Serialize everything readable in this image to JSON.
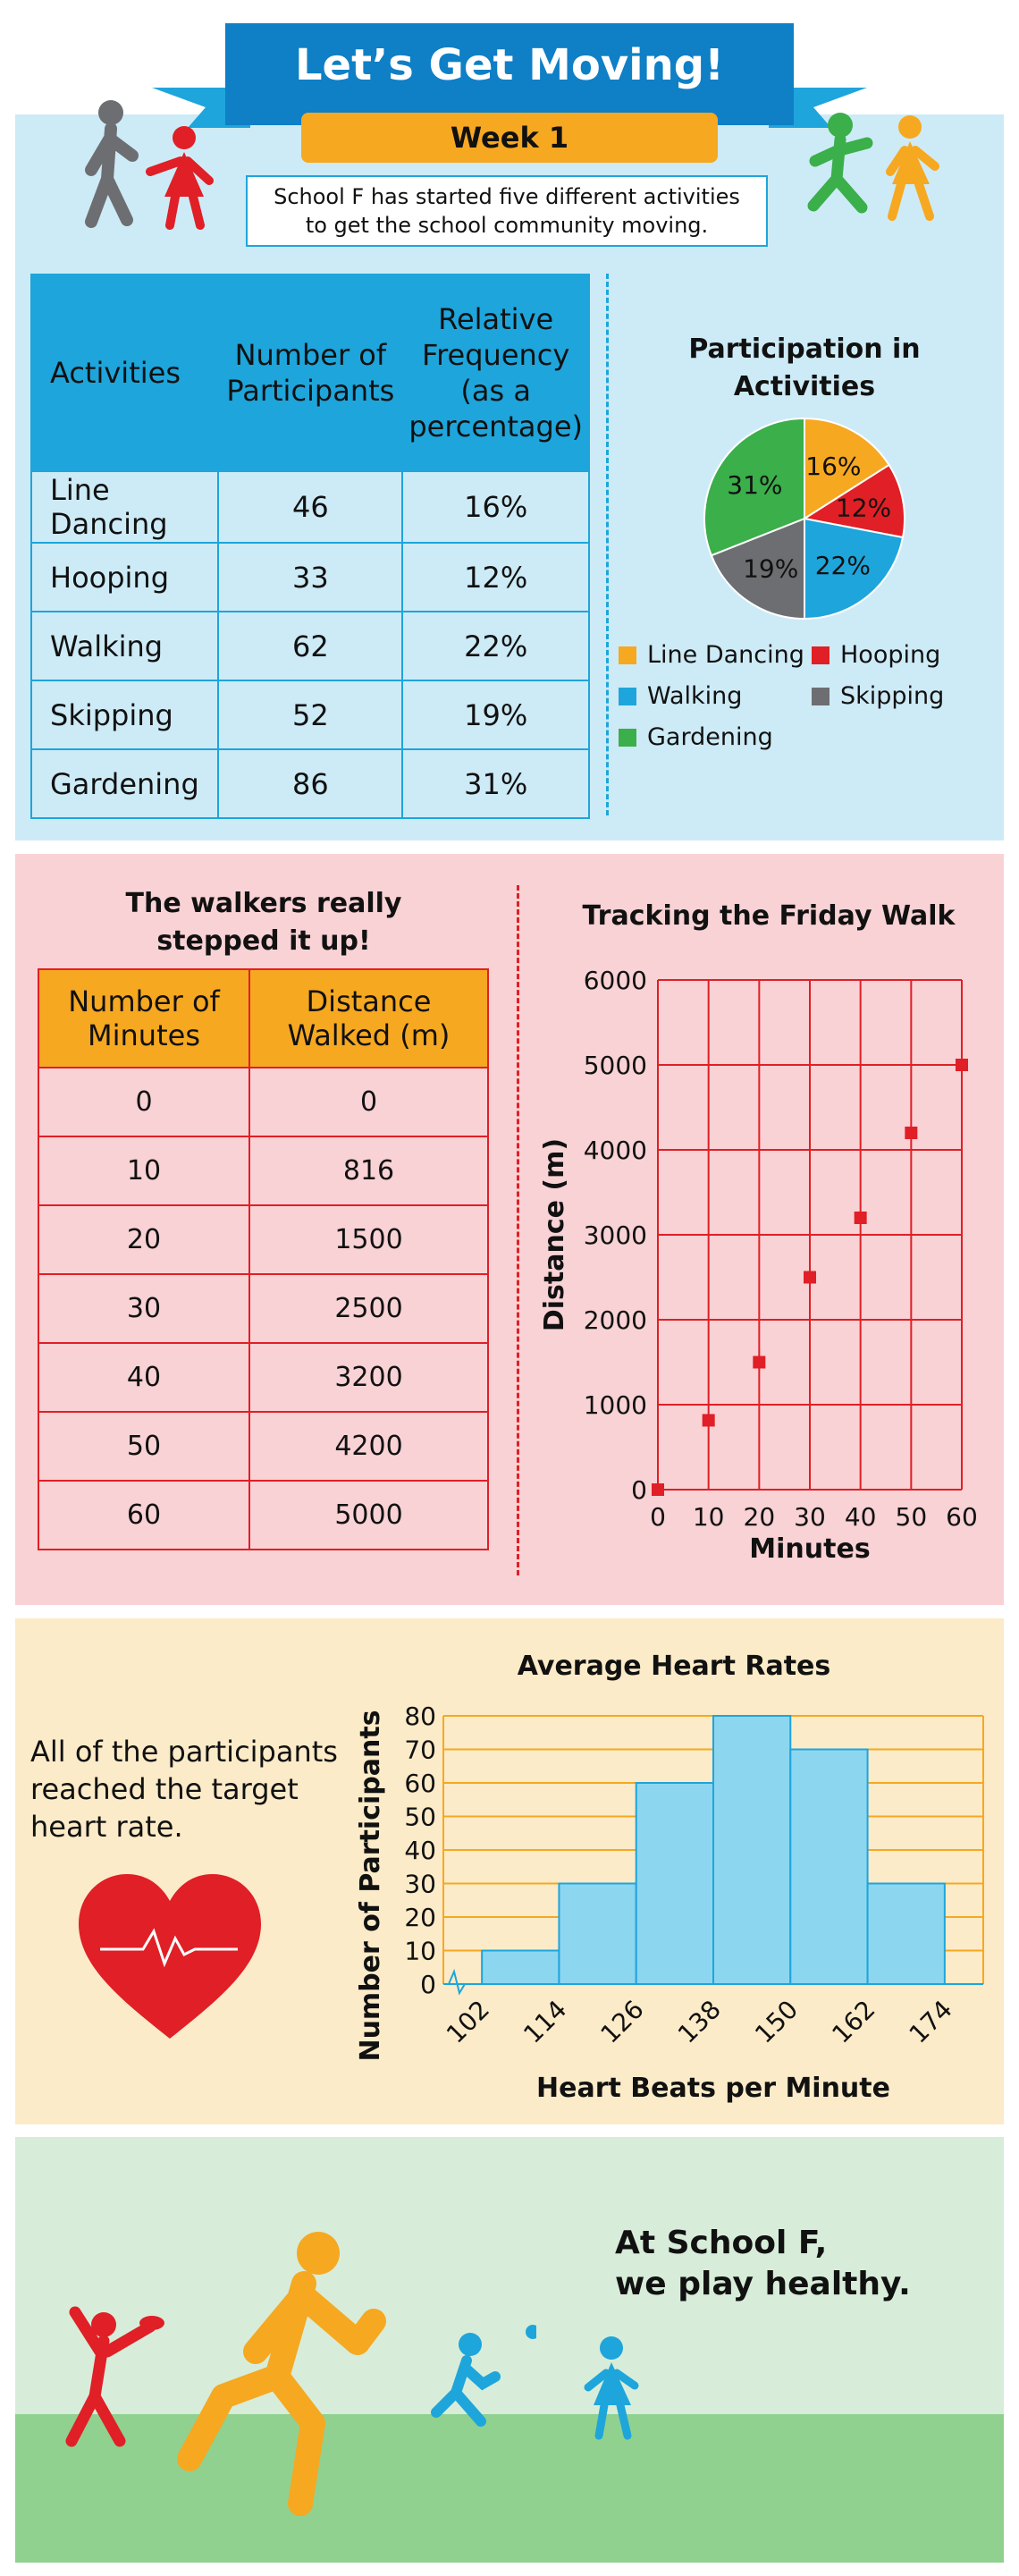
{
  "header": {
    "title": "Let’s Get Moving!",
    "week": "Week 1",
    "intro_line1": "School F has started five different activities",
    "intro_line2": "to get the school community moving."
  },
  "activities_table": {
    "headers": [
      "Activities",
      "Number of Participants",
      "Relative Frequency (as a percentage)"
    ],
    "rows": [
      [
        "Line Dancing",
        "46",
        "16%"
      ],
      [
        "Hooping",
        "33",
        "12%"
      ],
      [
        "Walking",
        "62",
        "22%"
      ],
      [
        "Skipping",
        "52",
        "19%"
      ],
      [
        "Gardening",
        "86",
        "31%"
      ]
    ]
  },
  "walk_section": {
    "title_line1": "The walkers really",
    "title_line2": "stepped it up!",
    "headers": [
      "Number of Minutes",
      "Distance Walked (m)"
    ],
    "rows": [
      [
        "0",
        "0"
      ],
      [
        "10",
        "816"
      ],
      [
        "20",
        "1500"
      ],
      [
        "30",
        "2500"
      ],
      [
        "40",
        "3200"
      ],
      [
        "50",
        "4200"
      ],
      [
        "60",
        "5000"
      ]
    ]
  },
  "heart_section": {
    "text": "All of the participants reached the target heart rate."
  },
  "footer": {
    "slogan_line1": "At School F,",
    "slogan_line2": "we play healthy."
  },
  "colors": {
    "blue": "#1ea5db",
    "dark_blue": "#0f7fc6",
    "orange": "#f6a821",
    "red": "#e01f26",
    "gray": "#6d6e71",
    "green": "#3aaf4a",
    "light_blue_bar": "#8dd6f0"
  },
  "chart_data": [
    {
      "type": "pie",
      "title": "Participation in Activities",
      "labels": [
        "Line Dancing",
        "Hooping",
        "Walking",
        "Skipping",
        "Gardening"
      ],
      "values": [
        16,
        12,
        22,
        19,
        31
      ],
      "value_labels": [
        "16%",
        "12%",
        "22%",
        "19%",
        "31%"
      ],
      "colors": [
        "#f6a821",
        "#e01f26",
        "#1ea5db",
        "#6d6e71",
        "#3aaf4a"
      ],
      "legend_position": "bottom"
    },
    {
      "type": "scatter",
      "title": "Tracking the Friday Walk",
      "xlabel": "Minutes",
      "ylabel": "Distance (m)",
      "x": [
        0,
        10,
        20,
        30,
        40,
        50,
        60
      ],
      "y": [
        0,
        816,
        1500,
        2500,
        3200,
        4200,
        5000
      ],
      "xlim": [
        0,
        60
      ],
      "ylim": [
        0,
        6000
      ],
      "xticks": [
        "0",
        "10",
        "20",
        "30",
        "40",
        "50",
        "60"
      ],
      "yticks": [
        "0",
        "1000",
        "2000",
        "3000",
        "4000",
        "5000",
        "6000"
      ],
      "grid": true
    },
    {
      "type": "bar",
      "title": "Average Heart Rates",
      "xlabel": "Heart Beats per Minute",
      "ylabel": "Number of  Participants",
      "bins": [
        [
          102,
          114
        ],
        [
          114,
          126
        ],
        [
          126,
          138
        ],
        [
          138,
          150
        ],
        [
          150,
          162
        ],
        [
          162,
          174
        ]
      ],
      "values": [
        10,
        30,
        60,
        80,
        70,
        30
      ],
      "xticks": [
        "102",
        "114",
        "126",
        "138",
        "150",
        "162",
        "174"
      ],
      "yticks": [
        "0",
        "10",
        "20",
        "30",
        "40",
        "50",
        "60",
        "70",
        "80"
      ],
      "ylim": [
        0,
        80
      ],
      "grid": true
    }
  ]
}
